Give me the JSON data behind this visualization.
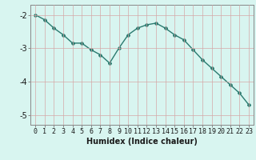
{
  "x": [
    0,
    1,
    2,
    3,
    4,
    5,
    6,
    7,
    8,
    9,
    10,
    11,
    12,
    13,
    14,
    15,
    16,
    17,
    18,
    19,
    20,
    21,
    22,
    23
  ],
  "y": [
    -2.0,
    -2.15,
    -2.4,
    -2.6,
    -2.85,
    -2.85,
    -3.05,
    -3.2,
    -3.45,
    -3.0,
    -2.6,
    -2.4,
    -2.3,
    -2.25,
    -2.4,
    -2.6,
    -2.75,
    -3.05,
    -3.35,
    -3.6,
    -3.85,
    -4.1,
    -4.35,
    -4.7
  ],
  "line_color": "#2a7a6f",
  "marker": "D",
  "marker_size": 2.0,
  "bg_color": "#d8f5f0",
  "grid_color": "#d4a8a8",
  "xlabel": "Humidex (Indice chaleur)",
  "xlim": [
    -0.5,
    23.5
  ],
  "ylim": [
    -5.3,
    -1.7
  ],
  "yticks": [
    -5,
    -4,
    -3,
    -2
  ],
  "xtick_labels": [
    "0",
    "1",
    "2",
    "3",
    "4",
    "5",
    "6",
    "7",
    "8",
    "9",
    "10",
    "11",
    "12",
    "13",
    "14",
    "15",
    "16",
    "17",
    "18",
    "19",
    "20",
    "21",
    "22",
    "23"
  ],
  "linewidth": 1.0,
  "grid_linewidth": 0.5,
  "tick_fontsize": 6.0,
  "xlabel_fontsize": 7.0,
  "ylabel_fontsize": 7.0
}
